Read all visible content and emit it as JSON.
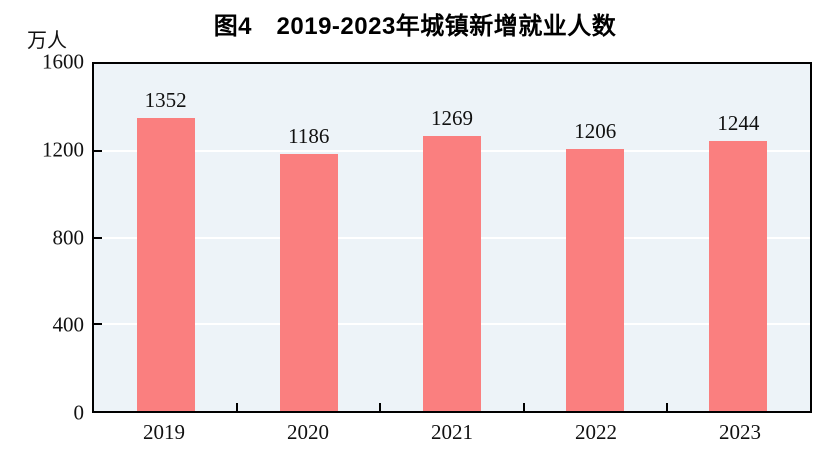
{
  "figure": {
    "title": "图4　2019-2023年城镇新增就业人数",
    "unit_label": "万人"
  },
  "chart_data": {
    "type": "bar",
    "title": "图4　2019-2023年城镇新增就业人数",
    "categories": [
      "2019",
      "2020",
      "2021",
      "2022",
      "2023"
    ],
    "values": [
      1352,
      1186,
      1269,
      1206,
      1244
    ],
    "xlabel": "",
    "ylabel": "万人",
    "ylim": [
      0,
      1600
    ],
    "yticks": [
      0,
      400,
      800,
      1200,
      1600
    ],
    "grid": true,
    "legend_position": "none",
    "bar_color": "#FA7F7F",
    "plot_background": "#EDF3F8",
    "gridline_color": "#FFFFFF",
    "axis_frame_color": "#000000"
  }
}
